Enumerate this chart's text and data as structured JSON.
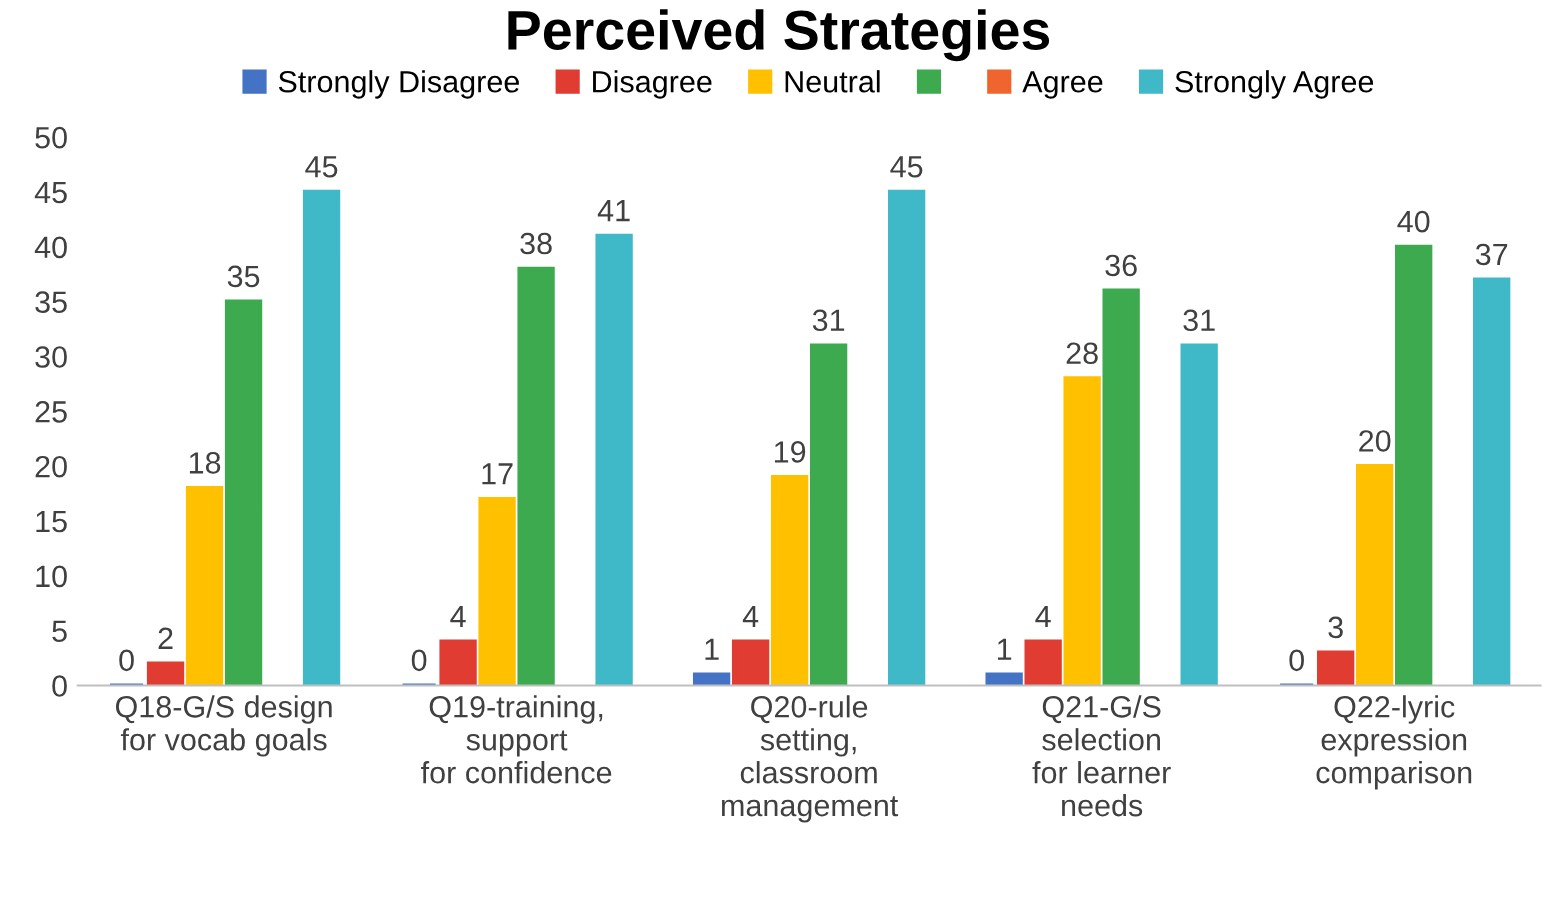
{
  "chart_data": {
    "type": "bar",
    "title": "Perceived Strategies",
    "categories": [
      "Q18-G/S design\nfor vocab goals",
      "Q19-training,\nsupport\nfor confidence",
      "Q20-rule\nsetting,\nclassroom\nmanagement",
      "Q21-G/S\nselection\nfor learner\nneeds",
      "Q22-lyric\nexpression\ncomparison"
    ],
    "series": [
      {
        "name": "Strongly Disagree",
        "color": "#4472c4",
        "values": [
          0,
          0,
          1,
          1,
          0
        ]
      },
      {
        "name": "Disagree",
        "color": "#e03c31",
        "values": [
          2,
          4,
          4,
          4,
          3
        ]
      },
      {
        "name": "Neutral",
        "color": "#ffc000",
        "values": [
          18,
          17,
          19,
          28,
          20
        ]
      },
      {
        "color": "#3daa4f",
        "values": [
          35,
          38,
          31,
          36,
          40
        ]
      },
      {
        "name": "Agree",
        "color": "#f0642d",
        "values": [
          null,
          null,
          null,
          null,
          null
        ]
      },
      {
        "name": "Strongly Agree",
        "color": "#3fb8c8",
        "values": [
          45,
          41,
          45,
          31,
          37
        ]
      }
    ],
    "ylim": [
      0,
      50
    ],
    "yticks": [
      0,
      5,
      10,
      15,
      20,
      25,
      30,
      35,
      40,
      45,
      50
    ],
    "grid": false,
    "legend": "top",
    "data_labels": true
  }
}
